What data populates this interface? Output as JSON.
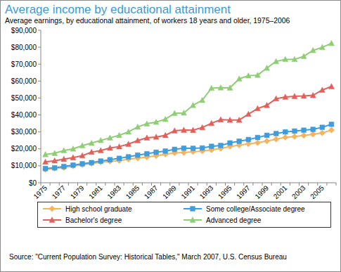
{
  "chart_data": {
    "type": "line",
    "title": "Average income by educational attainment",
    "subtitle": "Average earnings, by educational attainment, of workers 18 years and older, 1975–2006",
    "source": "Source: \"Current Population Survey: Historical Tables,\" March 2007, U.S. Census Bureau",
    "categories": [
      "1975",
      null,
      "1977",
      null,
      "1979",
      null,
      "1981",
      null,
      "1983",
      null,
      "1985",
      null,
      "1987",
      null,
      "1989",
      null,
      "1991",
      null,
      "1993",
      null,
      "1995",
      null,
      "1997",
      null,
      "1999",
      null,
      "2001",
      null,
      "2003",
      null,
      "2005",
      null
    ],
    "series": [
      {
        "name": "High school graduate",
        "color": "#f5b35e",
        "marker": "diamond",
        "values": [
          7800,
          8400,
          8900,
          9800,
          10600,
          11300,
          12100,
          12600,
          13000,
          13900,
          14500,
          15100,
          15900,
          16800,
          17600,
          17800,
          18300,
          18700,
          19400,
          20200,
          21400,
          22200,
          22900,
          23600,
          24600,
          25700,
          26800,
          27300,
          27900,
          28600,
          29400,
          31100
        ]
      },
      {
        "name": "Some college/Associate degree",
        "color": "#3e9ddd",
        "marker": "square",
        "values": [
          8400,
          8800,
          9600,
          10400,
          11200,
          11900,
          12800,
          13600,
          14400,
          15300,
          16300,
          17100,
          18000,
          18700,
          19700,
          20400,
          20300,
          20500,
          21500,
          22000,
          23500,
          24500,
          25500,
          26700,
          28000,
          29000,
          30000,
          30500,
          31000,
          31500,
          32700,
          34500
        ]
      },
      {
        "name": "Bachelor's degree",
        "color": "#e2605a",
        "marker": "triangle",
        "values": [
          12300,
          13000,
          13900,
          14800,
          16000,
          18100,
          19000,
          20500,
          21300,
          22800,
          24900,
          26500,
          27000,
          28000,
          30700,
          31100,
          31000,
          32600,
          35100,
          37200,
          37000,
          37000,
          40500,
          43800,
          45700,
          49600,
          50600,
          51000,
          51200,
          51600,
          54700,
          56800
        ]
      },
      {
        "name": "Advanced degree",
        "color": "#8fce74",
        "marker": "triangle",
        "values": [
          16700,
          17400,
          19000,
          20000,
          21900,
          23400,
          25000,
          26500,
          28000,
          30000,
          32900,
          34800,
          35800,
          37500,
          41000,
          41200,
          45700,
          48700,
          55800,
          56100,
          56000,
          61300,
          63200,
          63500,
          67700,
          71600,
          72800,
          72800,
          74600,
          78100,
          79900,
          82300
        ]
      }
    ],
    "ylim": [
      0,
      90000
    ],
    "yticks": [
      {
        "value": 0,
        "label": "$0"
      },
      {
        "value": 10000,
        "label": "$10,000"
      },
      {
        "value": 20000,
        "label": "$20,000"
      },
      {
        "value": 30000,
        "label": "$30,000"
      },
      {
        "value": 40000,
        "label": "$40,000"
      },
      {
        "value": 50000,
        "label": "$50,000"
      },
      {
        "value": 60000,
        "label": "$60,000"
      },
      {
        "value": 70000,
        "label": "$70,000"
      },
      {
        "value": 80000,
        "label": "$80,000"
      },
      {
        "value": 90000,
        "label": "$90,000"
      }
    ],
    "grid": false,
    "legend": "bottom"
  }
}
